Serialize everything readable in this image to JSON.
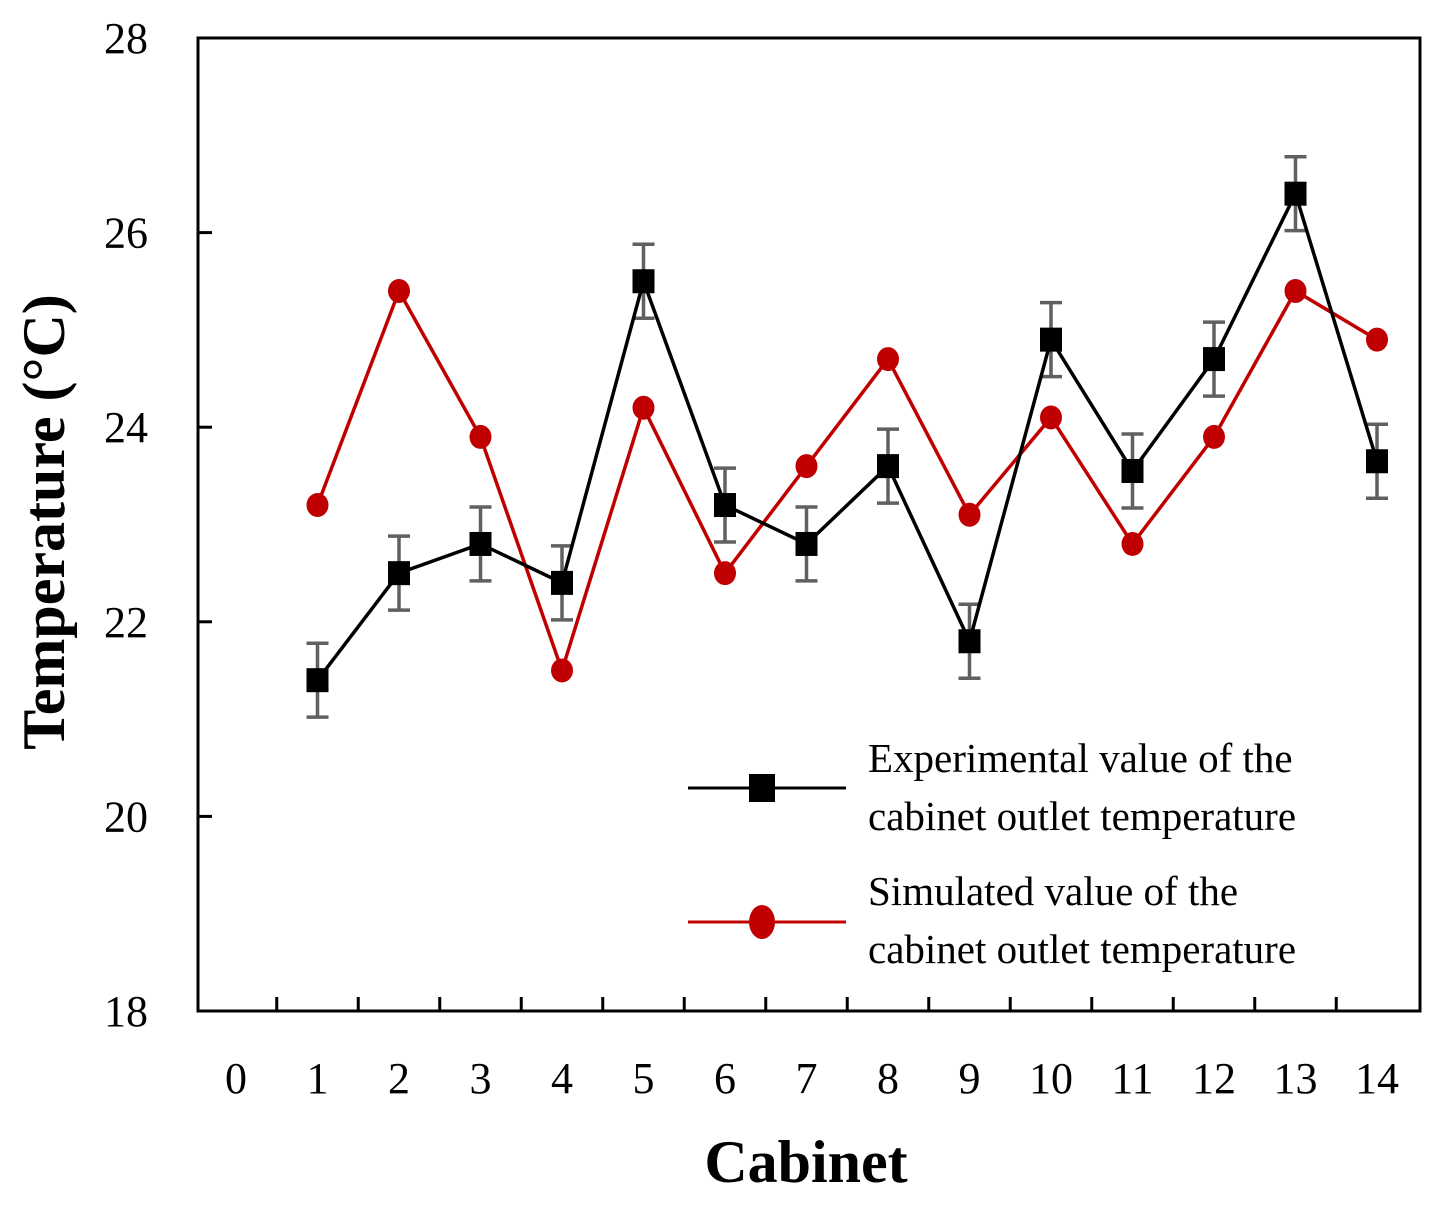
{
  "chart_data": {
    "type": "line",
    "title": "",
    "xlabel": "Cabinet",
    "ylabel": "Temperature (°C)",
    "xlim": [
      0,
      14
    ],
    "ylim": [
      18,
      28
    ],
    "x_ticks": [
      0,
      1,
      2,
      3,
      4,
      5,
      6,
      7,
      8,
      9,
      10,
      11,
      12,
      13,
      14
    ],
    "y_ticks": [
      18,
      20,
      22,
      24,
      26,
      28
    ],
    "grid": false,
    "legend_position": "bottom-right",
    "series": [
      {
        "name": "Experimental value of the cabinet outlet temperature",
        "legend_lines": [
          "Experimental value of the",
          "cabinet outlet temperature"
        ],
        "color": "#000000",
        "marker": "square",
        "x": [
          1,
          2,
          3,
          4,
          5,
          6,
          7,
          8,
          9,
          10,
          11,
          12,
          13,
          14
        ],
        "values": [
          21.4,
          22.5,
          22.8,
          22.4,
          25.5,
          23.2,
          22.8,
          23.6,
          21.8,
          24.9,
          23.55,
          24.7,
          26.4,
          23.65
        ],
        "error": [
          0.38,
          0.38,
          0.38,
          0.38,
          0.38,
          0.38,
          0.38,
          0.38,
          0.38,
          0.38,
          0.38,
          0.38,
          0.38,
          0.38
        ],
        "error_color": "#606060"
      },
      {
        "name": "Simulated value of the cabinet outlet temperature",
        "legend_lines": [
          "Simulated value of the",
          "cabinet outlet temperature"
        ],
        "color": "#c00000",
        "marker": "circle",
        "x": [
          1,
          2,
          3,
          4,
          5,
          6,
          7,
          8,
          9,
          10,
          11,
          12,
          13,
          14
        ],
        "values": [
          23.2,
          25.4,
          23.9,
          21.5,
          24.2,
          22.5,
          23.6,
          24.7,
          23.1,
          24.1,
          22.8,
          23.9,
          25.4,
          24.9
        ]
      }
    ]
  }
}
